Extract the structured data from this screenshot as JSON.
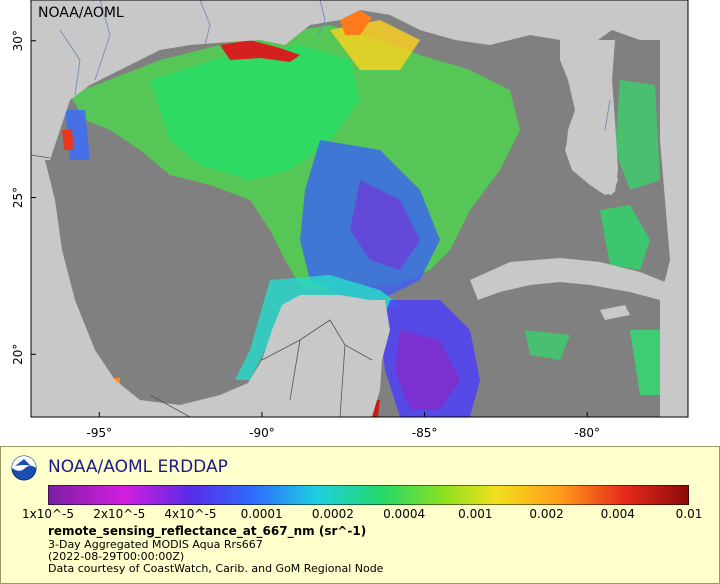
{
  "map": {
    "credit": "NOAA/AOML",
    "lat_ticks": [
      {
        "label": "30°",
        "lat": 30
      },
      {
        "label": "25°",
        "lat": 25
      },
      {
        "label": "20°",
        "lat": 20
      }
    ],
    "lon_ticks": [
      {
        "label": "-95°",
        "lon": -95
      },
      {
        "label": "-90°",
        "lon": -90
      },
      {
        "label": "-85°",
        "lon": -85
      },
      {
        "label": "-80°",
        "lon": -80
      }
    ],
    "colors": {
      "ocean_nodata": "#808080",
      "land": "#c8c8c8",
      "border": "#555555",
      "river": "#6a8fbf"
    }
  },
  "legend": {
    "title": "NOAA/AOML ERDDAP",
    "colorbar_labels": [
      "1x10^-5",
      "2x10^-5",
      "4x10^-5",
      "0.0001",
      "0.0002",
      "0.0004",
      "0.001",
      "0.002",
      "0.004",
      "0.01"
    ],
    "variable": "remote_sensing_reflectance_at_667_nm (sr^-1)",
    "lines": [
      "3-Day Aggregated MODIS Aqua Rrs667",
      "(2022-08-29T00:00:00Z)",
      "Data courtesy of CoastWatch, Carib. and GoM Regional Node"
    ]
  }
}
